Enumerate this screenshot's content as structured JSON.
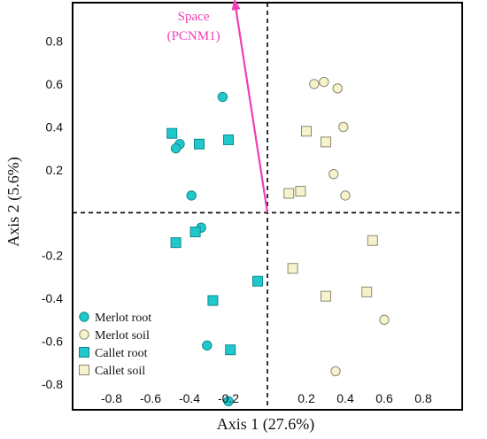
{
  "chart_data": {
    "type": "scatter",
    "xlabel": "Axis 1 (27.6%)",
    "ylabel": "Axis 2 (5.6%)",
    "xlim": [
      -1.0,
      1.0
    ],
    "ylim": [
      -0.92,
      0.98
    ],
    "x_ticks": [
      {
        "value": -0.8,
        "label": "-0.8"
      },
      {
        "value": -0.6,
        "label": "-0.6"
      },
      {
        "value": -0.4,
        "label": "-0.4"
      },
      {
        "value": -0.2,
        "label": "-0.2"
      },
      {
        "value": 0.2,
        "label": "0.2"
      },
      {
        "value": 0.4,
        "label": "0.4"
      },
      {
        "value": 0.6,
        "label": "0.6"
      },
      {
        "value": 0.8,
        "label": "0.8"
      }
    ],
    "y_ticks": [
      {
        "value": 0.8,
        "label": "0.8"
      },
      {
        "value": 0.6,
        "label": "0.6"
      },
      {
        "value": 0.4,
        "label": "0.4"
      },
      {
        "value": 0.2,
        "label": "0.2"
      },
      {
        "value": -0.2,
        "label": "-0.2"
      },
      {
        "value": -0.4,
        "label": "-0.4"
      },
      {
        "value": -0.6,
        "label": "-0.6"
      },
      {
        "value": -0.8,
        "label": "-0.8"
      }
    ],
    "reference_lines": {
      "x": 0,
      "y": 0
    },
    "legend_position": "bottom-left",
    "series": [
      {
        "name": "Merlot root",
        "marker": "circle",
        "fill": "#20c8cc",
        "stroke": "#0d8a8e",
        "points": [
          [
            -0.23,
            0.54
          ],
          [
            -0.45,
            0.32
          ],
          [
            -0.47,
            0.3
          ],
          [
            -0.39,
            0.08
          ],
          [
            -0.34,
            -0.07
          ],
          [
            -0.31,
            -0.62
          ],
          [
            -0.2,
            -0.88
          ]
        ]
      },
      {
        "name": "Merlot soil",
        "marker": "circle",
        "fill": "#f5f2cc",
        "stroke": "#8d8a70",
        "points": [
          [
            0.24,
            0.6
          ],
          [
            0.29,
            0.61
          ],
          [
            0.36,
            0.58
          ],
          [
            0.39,
            0.4
          ],
          [
            0.34,
            0.18
          ],
          [
            0.4,
            0.08
          ],
          [
            0.6,
            -0.5
          ],
          [
            0.35,
            -0.74
          ]
        ]
      },
      {
        "name": "Callet root",
        "marker": "square",
        "fill": "#20c8cc",
        "stroke": "#0d8a8e",
        "points": [
          [
            -0.49,
            0.37
          ],
          [
            -0.35,
            0.32
          ],
          [
            -0.2,
            0.34
          ],
          [
            -0.37,
            -0.09
          ],
          [
            -0.47,
            -0.14
          ],
          [
            -0.05,
            -0.32
          ],
          [
            -0.28,
            -0.41
          ],
          [
            -0.19,
            -0.64
          ]
        ]
      },
      {
        "name": "Callet soil",
        "marker": "square",
        "fill": "#f5f2cc",
        "stroke": "#8d8a70",
        "points": [
          [
            0.2,
            0.38
          ],
          [
            0.3,
            0.33
          ],
          [
            0.17,
            0.1
          ],
          [
            0.11,
            0.09
          ],
          [
            0.54,
            -0.13
          ],
          [
            0.13,
            -0.26
          ],
          [
            0.3,
            -0.39
          ],
          [
            0.51,
            -0.37
          ]
        ]
      }
    ],
    "arrow": {
      "label_lines": [
        "Space",
        "(PCNM1)"
      ],
      "color": "#ee3fb6",
      "from": [
        0,
        0
      ],
      "to": [
        -0.17,
        1.0
      ]
    }
  }
}
